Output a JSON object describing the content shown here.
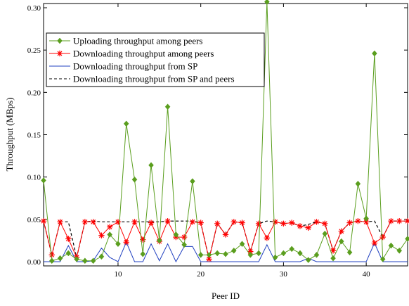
{
  "chart_data": {
    "type": "line",
    "title": "",
    "xlabel": "Peer ID",
    "ylabel": "Throughput (MBps)",
    "xlim": [
      1,
      45
    ],
    "ylim": [
      -0.005,
      0.305
    ],
    "xticks": [
      10,
      20,
      30,
      40
    ],
    "yticks": [
      "0.00",
      "0.05",
      "0.10",
      "0.15",
      "0.20",
      "0.25",
      "0.30"
    ],
    "grid": false,
    "legend_position": "top-left",
    "x": [
      1,
      2,
      3,
      4,
      5,
      6,
      7,
      8,
      9,
      10,
      11,
      12,
      13,
      14,
      15,
      16,
      17,
      18,
      19,
      20,
      21,
      22,
      23,
      24,
      25,
      26,
      27,
      28,
      29,
      30,
      31,
      32,
      33,
      34,
      35,
      36,
      37,
      38,
      39,
      40,
      41,
      42,
      43,
      44,
      45
    ],
    "series": [
      {
        "name": "Uploading throughput among peers",
        "color": "#5a9e1e",
        "marker": "diamond",
        "values": [
          0.096,
          0.001,
          0.004,
          0.01,
          0.003,
          0.001,
          0.001,
          0.006,
          0.032,
          0.021,
          0.163,
          0.097,
          0.009,
          0.114,
          0.025,
          0.183,
          0.032,
          0.02,
          0.095,
          0.008,
          0.008,
          0.01,
          0.009,
          0.013,
          0.021,
          0.008,
          0.01,
          0.307,
          0.005,
          0.01,
          0.015,
          0.01,
          0.002,
          0.008,
          0.033,
          0.004,
          0.024,
          0.011,
          0.092,
          0.051,
          0.246,
          0.003,
          0.019,
          0.013,
          0.027
        ]
      },
      {
        "name": "Downloading throughput among peers",
        "color": "#ff0000",
        "marker": "asterisk",
        "values": [
          0.048,
          0.008,
          0.047,
          0.027,
          0.005,
          0.047,
          0.047,
          0.031,
          0.041,
          0.047,
          0.023,
          0.047,
          0.026,
          0.046,
          0.024,
          0.048,
          0.029,
          0.029,
          0.047,
          0.046,
          0.003,
          0.045,
          0.032,
          0.047,
          0.046,
          0.012,
          0.045,
          0.028,
          0.047,
          0.045,
          0.046,
          0.042,
          0.04,
          0.047,
          0.045,
          0.013,
          0.036,
          0.046,
          0.048,
          0.047,
          0.022,
          0.029,
          0.048,
          0.048,
          0.048
        ]
      },
      {
        "name": "Downloading throughput from SP",
        "color": "#2040c0",
        "marker": "none",
        "values": [
          0.0,
          0.0,
          0.0,
          0.019,
          0.0,
          0.0,
          0.001,
          0.016,
          0.005,
          0.0,
          0.023,
          0.0,
          0.0,
          0.021,
          0.001,
          0.021,
          0.0,
          0.018,
          0.018,
          0.0,
          0.0,
          0.0,
          0.0,
          0.0,
          0.0,
          0.0,
          0.0,
          0.02,
          0.0,
          0.0,
          0.0,
          0.0,
          0.004,
          0.0,
          0.0,
          0.0,
          0.0,
          0.0,
          0.0,
          0.0,
          0.022,
          0.0,
          0.0,
          0.0,
          0.0
        ]
      },
      {
        "name": "Downloading throughput from SP and peers",
        "color": "#000000",
        "marker": "none",
        "values": [
          0.048,
          0.008,
          0.047,
          0.047,
          0.005,
          0.047,
          0.048,
          0.047,
          0.047,
          0.047,
          0.047,
          0.047,
          0.047,
          0.047,
          0.047,
          0.048,
          0.048,
          0.048,
          0.048,
          0.046,
          0.003,
          0.045,
          0.032,
          0.047,
          0.046,
          0.012,
          0.045,
          0.048,
          0.047,
          0.045,
          0.046,
          0.042,
          0.044,
          0.047,
          0.045,
          0.013,
          0.036,
          0.046,
          0.048,
          0.047,
          0.048,
          0.029,
          0.048,
          0.048,
          0.048
        ]
      }
    ]
  }
}
